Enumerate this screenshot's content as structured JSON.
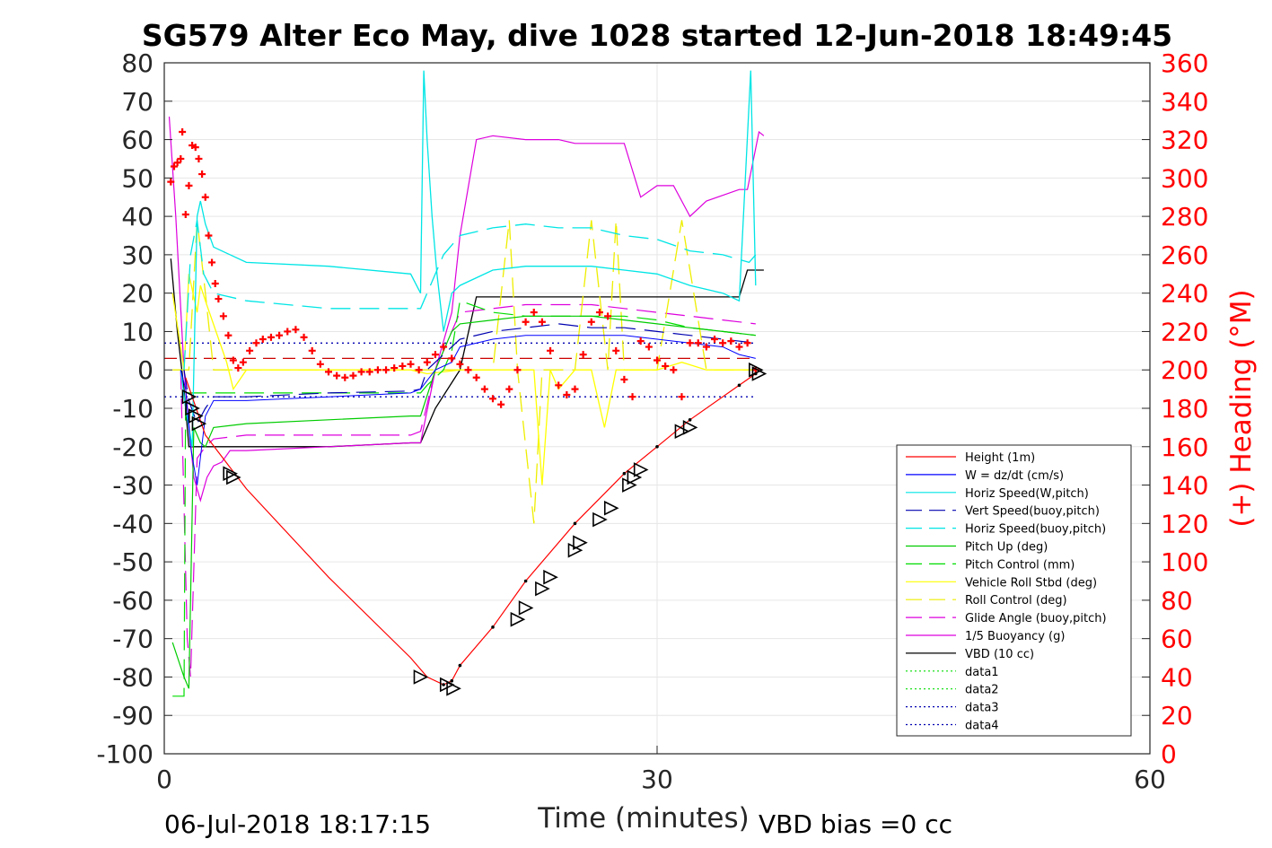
{
  "chart_data": {
    "type": "line",
    "title": "SG579 Alter Eco May, dive 1028 started 12-Jun-2018 18:49:45",
    "xlabel": "Time (minutes)",
    "ylabel": "",
    "y2label": "(+) Heading (°M)",
    "xlim": [
      0,
      60
    ],
    "ylim": [
      -100,
      80
    ],
    "y2lim": [
      0,
      360
    ],
    "xticks": [
      0,
      30,
      60
    ],
    "yticks": [
      -100,
      -90,
      -80,
      -70,
      -60,
      -50,
      -40,
      -30,
      -20,
      -10,
      0,
      10,
      20,
      30,
      40,
      50,
      60,
      70,
      80
    ],
    "y2ticks": [
      0,
      20,
      40,
      60,
      80,
      100,
      120,
      140,
      160,
      180,
      200,
      220,
      240,
      260,
      280,
      300,
      320,
      340,
      360
    ],
    "grid": true,
    "legend_position": "lower-right",
    "footer_left": "06-Jul-2018 18:17:15",
    "footer_right": "VBD bias =0 cc",
    "colors": {
      "height": "#ff0000",
      "w": "#0000ff",
      "horiz_w": "#00e5e5",
      "vert_buoy": "#0000b0",
      "horiz_buoy": "#00e5e5",
      "pitch": "#00cc00",
      "pitch_ctrl": "#00dd00",
      "roll": "#ffff00",
      "roll_ctrl": "#eeee00",
      "glide": "#dd00dd",
      "buoy": "#dd00dd",
      "vbd": "#000000",
      "heading": "#ff0000",
      "right_axis": "#ff0000"
    },
    "series": [
      {
        "name": "Height (1m)",
        "style": "solid",
        "x": [
          1.3,
          2.5,
          5,
          10,
          15,
          16,
          17,
          17.5,
          18,
          20,
          22,
          25,
          28,
          30,
          32,
          35,
          36
        ],
        "y": [
          -2,
          -17,
          -31,
          -54,
          -75,
          -80,
          -82,
          -81,
          -77,
          -67,
          -55,
          -40,
          -27,
          -20,
          -13,
          -4,
          -1
        ]
      },
      {
        "name": "W = dz/dt (cm/s)",
        "style": "solid",
        "x": [
          1,
          1.3,
          1.6,
          2,
          2.5,
          3,
          5,
          10,
          15,
          15.6,
          16.5,
          17.5,
          18,
          20,
          22,
          24,
          26,
          28,
          30,
          32,
          34,
          35,
          36
        ],
        "y": [
          0,
          -5,
          -20,
          -30,
          -12,
          -8,
          -8,
          -7,
          -6,
          -5,
          0,
          2,
          6,
          8,
          9,
          9,
          9,
          9,
          8,
          7,
          6,
          4,
          3
        ]
      },
      {
        "name": "Horiz Speed(W,pitch)",
        "style": "solid",
        "x": [
          1,
          1.3,
          1.7,
          2,
          2.2,
          2.5,
          3,
          5,
          10,
          15,
          15.6,
          15.8,
          16,
          16.3,
          16.6,
          17,
          17.5,
          18,
          20,
          22,
          24,
          26,
          28,
          30,
          32,
          34,
          35,
          35.7,
          36
        ],
        "y": [
          0,
          -10,
          -20,
          40,
          44,
          38,
          32,
          28,
          27,
          25,
          20,
          78,
          60,
          40,
          25,
          10,
          20,
          22,
          26,
          27,
          27,
          27,
          26,
          25,
          22,
          20,
          18,
          78,
          22
        ]
      },
      {
        "name": "Vert Speed(buoy,pitch)",
        "style": "dashed",
        "x": [
          1.2,
          1.5,
          2,
          2.5,
          3,
          5,
          10,
          15,
          15.6,
          16,
          17,
          18,
          20,
          22,
          24,
          26,
          28,
          30,
          32,
          34,
          36
        ],
        "y": [
          0,
          -8,
          -14,
          -10,
          -7,
          -7,
          -6,
          -5.5,
          -5,
          0,
          4,
          8,
          10,
          11,
          12,
          11,
          11,
          10,
          9,
          8,
          7
        ]
      },
      {
        "name": "Horiz Speed(buoy,pitch)",
        "style": "dashed",
        "x": [
          1.2,
          1.6,
          2,
          2.4,
          3,
          5,
          10,
          15,
          15.6,
          16,
          17,
          18,
          20,
          22,
          24,
          26,
          28,
          30,
          32,
          34,
          35.6,
          36
        ],
        "y": [
          0,
          30,
          39,
          25,
          20,
          18,
          16,
          16,
          16,
          20,
          30,
          35,
          37,
          38,
          37,
          37,
          35,
          34,
          31,
          30,
          28,
          30
        ]
      },
      {
        "name": "Pitch Up (deg)",
        "style": "solid",
        "x": [
          0.5,
          1.2,
          1.5,
          1.8,
          2.2,
          2.5,
          3,
          5,
          10,
          15,
          15.6,
          16.5,
          17.5,
          18,
          20,
          22,
          24,
          26,
          28,
          30,
          32,
          34,
          36
        ],
        "y": [
          -71,
          -80,
          -83,
          -15,
          -19,
          -20,
          -15,
          -14,
          -13,
          -12,
          -12,
          0,
          10,
          12,
          13,
          14,
          14,
          14,
          13,
          12,
          11,
          10,
          9
        ]
      },
      {
        "name": "Pitch Control (mm)",
        "style": "dashed",
        "x": [
          0.5,
          1.2,
          1.3,
          2,
          3,
          5,
          10,
          15,
          15.6,
          16,
          17,
          17.5,
          18,
          20,
          22,
          24,
          26,
          28,
          30,
          32,
          34,
          36
        ],
        "y": [
          -85,
          -85,
          -6,
          -6,
          -6,
          -6,
          -6,
          -6,
          -6,
          -4,
          0,
          5,
          18,
          15,
          14,
          14,
          14,
          14,
          13,
          11,
          10,
          9
        ]
      },
      {
        "name": "Vehicle Roll Stbd (deg)",
        "style": "solid",
        "x": [
          0.5,
          1.2,
          1.5,
          2,
          2.2,
          2.5,
          3.8,
          4.2,
          5,
          10,
          15,
          16,
          18,
          20,
          21,
          22.5,
          23,
          23.5,
          24,
          25,
          26,
          26.8,
          27.5,
          28,
          29,
          30,
          31.5,
          33,
          36
        ],
        "y": [
          20,
          0,
          25,
          15,
          22,
          18,
          2,
          -5,
          0,
          0,
          0,
          -1,
          0,
          0,
          0,
          0,
          -30,
          0,
          -5,
          0,
          0,
          -15,
          0,
          0,
          0,
          0,
          2,
          0,
          0
        ]
      },
      {
        "name": "Roll Control (deg)",
        "style": "dashed",
        "x": [
          0.5,
          1.5,
          2,
          2.5,
          3,
          4,
          5,
          10,
          15,
          16,
          18,
          20,
          21,
          21.5,
          22.5,
          23,
          24,
          25,
          26,
          27,
          27.5,
          28,
          30,
          31.5,
          33,
          36
        ],
        "y": [
          0,
          0,
          39,
          20,
          0,
          0,
          0,
          0,
          0,
          0,
          0,
          0,
          39,
          0,
          -40,
          0,
          0,
          0,
          39,
          0,
          39,
          0,
          0,
          39,
          0,
          0
        ]
      },
      {
        "name": "Glide Angle (buoy,pitch)",
        "style": "dashed",
        "x": [
          1,
          1.4,
          1.6,
          2,
          2.5,
          3,
          5,
          10,
          15,
          15.6,
          16.5,
          17.5,
          18,
          20,
          22,
          24,
          26,
          28,
          30,
          32,
          34,
          36
        ],
        "y": [
          0,
          -70,
          -80,
          -23,
          -20,
          -18,
          -17,
          -17,
          -17,
          -16,
          0,
          10,
          15,
          16,
          17,
          17,
          17,
          16,
          15,
          14,
          13,
          12
        ]
      },
      {
        "name": "1/5 Buoyancy (g)",
        "style": "solid",
        "x": [
          0.3,
          0.7,
          1.2,
          1.8,
          2.2,
          2.6,
          3,
          3.5,
          4,
          5,
          10,
          15,
          15.6,
          16.5,
          17.5,
          18,
          19,
          20,
          22,
          24,
          25,
          26,
          28,
          29,
          30,
          31,
          32,
          33,
          35,
          35.5,
          36.2,
          36.5
        ],
        "y": [
          66,
          40,
          0,
          -28,
          -34,
          -28,
          -25,
          -24,
          -21,
          -21,
          -20,
          -19,
          -19,
          0,
          15,
          35,
          60,
          61,
          60,
          60,
          59,
          59,
          59,
          45,
          48,
          48,
          40,
          44,
          47,
          47,
          62,
          61
        ]
      },
      {
        "name": "VBD (10 cc)",
        "style": "solid",
        "x": [
          0.4,
          0.8,
          1.2,
          1.5,
          2.5,
          5,
          10,
          15,
          15.6,
          16.5,
          18,
          19,
          20,
          22,
          24,
          26,
          28,
          30,
          32,
          34,
          35,
          35.5,
          36.5
        ],
        "y": [
          29,
          10,
          -5,
          -20,
          -20,
          -20,
          -20,
          -19,
          -19,
          -10,
          0,
          19,
          19,
          19,
          19,
          19,
          19,
          19,
          19,
          19,
          19,
          26,
          26
        ]
      },
      {
        "name": "data1",
        "style": "dotted",
        "x": [],
        "y": []
      },
      {
        "name": "data2",
        "style": "dotted",
        "x": [],
        "y": []
      },
      {
        "name": "data3",
        "style": "dotted",
        "x": [
          0,
          36
        ],
        "y": [
          7,
          7
        ]
      },
      {
        "name": "data4",
        "style": "dotted",
        "x": [
          0,
          36
        ],
        "y": [
          -7,
          -7
        ]
      }
    ],
    "reference_lines": [
      {
        "style": "dashed",
        "color": "#cc0000",
        "y": 3,
        "x": [
          0,
          36
        ]
      }
    ],
    "heading_points": {
      "x": [
        0.4,
        0.6,
        0.8,
        1,
        1.1,
        1.3,
        1.5,
        1.7,
        1.9,
        2.1,
        2.3,
        2.5,
        2.7,
        2.9,
        3.1,
        3.3,
        3.6,
        3.9,
        4.2,
        4.5,
        4.8,
        5.2,
        5.6,
        6,
        6.5,
        7,
        7.5,
        8,
        8.5,
        9,
        9.5,
        10,
        10.5,
        11,
        11.5,
        12,
        12.5,
        13,
        13.5,
        14,
        14.5,
        15,
        15.5,
        16,
        16.5,
        17,
        17.5,
        18,
        18.5,
        19,
        19.5,
        20,
        20.5,
        21,
        21.5,
        22,
        22.5,
        23,
        23.5,
        24,
        24.5,
        25,
        25.5,
        26,
        26.5,
        27,
        27.5,
        28,
        28.5,
        29,
        29.5,
        30,
        30.5,
        31,
        31.5,
        32,
        32.5,
        33,
        33.5,
        34,
        34.5,
        35,
        35.5,
        36
      ],
      "y": [
        298,
        306,
        308,
        310,
        324,
        281,
        296,
        317,
        316,
        310,
        302,
        290,
        270,
        256,
        245,
        237,
        228,
        218,
        205,
        201,
        204,
        210,
        214,
        216,
        217,
        218,
        220,
        221,
        217,
        210,
        203,
        199,
        197,
        196,
        197,
        199,
        199,
        200,
        200,
        201,
        202,
        203,
        200,
        204,
        208,
        212,
        206,
        203,
        200,
        196,
        190,
        185,
        182,
        190,
        200,
        225,
        230,
        225,
        210,
        192,
        187,
        190,
        208,
        225,
        230,
        228,
        210,
        195,
        186,
        215,
        212,
        205,
        202,
        200,
        186,
        214,
        214,
        212,
        216,
        214,
        215,
        212,
        214,
        200
      ]
    },
    "markers": {
      "x": [
        1.5,
        1.7,
        1.9,
        2.1,
        4,
        4.2,
        15.6,
        17.2,
        17.6,
        21.5,
        22,
        23,
        23.5,
        25,
        25.3,
        26.5,
        27.2,
        28.3,
        28.6,
        29,
        31.5,
        32,
        36,
        36.2
      ],
      "y": [
        -7,
        -10,
        -12,
        -14,
        -27,
        -28,
        -80,
        -82,
        -83,
        -65,
        -62,
        -57,
        -54,
        -47,
        -45,
        -39,
        -36,
        -30,
        -28,
        -26,
        -16,
        -15,
        0,
        -1
      ]
    }
  }
}
